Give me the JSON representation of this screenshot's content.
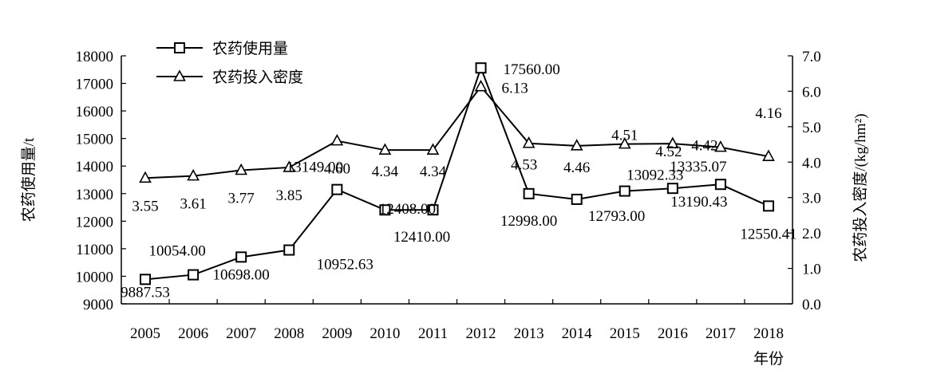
{
  "chart_data": {
    "type": "line",
    "categories": [
      "2005",
      "2006",
      "2007",
      "2008",
      "2009",
      "2010",
      "2011",
      "2012",
      "2013",
      "2014",
      "2015",
      "2016",
      "2017",
      "2018"
    ],
    "xlabel": "年份",
    "series": [
      {
        "name": "农药使用量",
        "axis": "left",
        "marker": "square",
        "values": [
          9887.53,
          10054.0,
          10698.0,
          10952.63,
          13149.0,
          12408.0,
          12410.0,
          17560.0,
          12998.0,
          12793.0,
          13092.33,
          13190.43,
          13335.07,
          12550.41
        ],
        "labels": [
          "9887.53",
          "10054.00",
          "10698.00",
          "10952.63",
          "13149.00",
          "12408.00",
          "12410.00",
          "17560.00",
          "12998.00",
          "12793.00",
          "13092.33",
          "13190.43",
          "13335.07",
          "12550.41"
        ]
      },
      {
        "name": "农药投入密度",
        "axis": "right",
        "marker": "triangle",
        "values": [
          3.55,
          3.61,
          3.77,
          3.85,
          4.6,
          4.34,
          4.34,
          6.13,
          4.53,
          4.46,
          4.51,
          4.52,
          4.42,
          4.16
        ],
        "labels": [
          "3.55",
          "3.61",
          "3.77",
          "3.85",
          "4.60",
          "4.34",
          "4.34",
          "6.13",
          "4.53",
          "4.46",
          "4.51",
          "4.52",
          "4.42",
          "4.16"
        ]
      }
    ],
    "y_left": {
      "label": "农药使用量/t",
      "range": [
        9000,
        18000
      ],
      "ticks": [
        "9000",
        "10000",
        "11000",
        "12000",
        "13000",
        "14000",
        "15000",
        "16000",
        "17000",
        "18000"
      ]
    },
    "y_right": {
      "label": "农药投入密度/(kg/hm²)",
      "range": [
        0,
        7
      ],
      "ticks": [
        "0.0",
        "1.0",
        "2.0",
        "3.0",
        "4.0",
        "5.0",
        "6.0",
        "7.0"
      ]
    },
    "legend_position": "top-left",
    "grid": false
  }
}
